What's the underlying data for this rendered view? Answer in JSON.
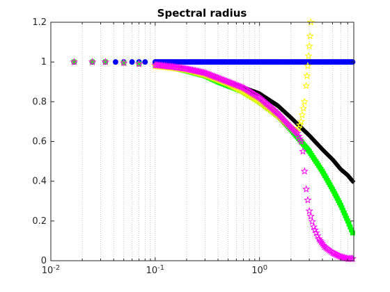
{
  "chart_data": {
    "type": "scatter",
    "title": "Spectral radius",
    "xlabel": "",
    "ylabel": "",
    "xscale": "log",
    "xlim": [
      0.01,
      8
    ],
    "ylim": [
      0,
      1.2
    ],
    "grid": "x-minor-dotted",
    "x_ticks": [
      {
        "value": 0.01,
        "base": "10",
        "exp": "-2"
      },
      {
        "value": 0.1,
        "base": "10",
        "exp": "-1"
      },
      {
        "value": 1,
        "base": "10",
        "exp": "0"
      }
    ],
    "y_ticks": [
      {
        "value": 0,
        "label": "0"
      },
      {
        "value": 0.2,
        "label": "0.2"
      },
      {
        "value": 0.4,
        "label": "0.4"
      },
      {
        "value": 0.6,
        "label": "0.6"
      },
      {
        "value": 0.8,
        "label": "0.8"
      },
      {
        "value": 1,
        "label": "1"
      },
      {
        "value": 1.2,
        "label": "1.2"
      }
    ],
    "series": [
      {
        "marker": "circle",
        "color": "#0000ff",
        "x": [
          0.0167,
          0.025,
          0.0333,
          0.0417,
          0.05,
          0.06,
          0.07,
          0.08,
          0.1,
          0.15,
          0.2,
          0.3,
          0.5,
          0.7,
          1,
          1.5,
          2,
          3,
          4,
          5,
          6,
          7,
          7.8
        ],
        "y": [
          1,
          1,
          1,
          1,
          1,
          1,
          1,
          1,
          1,
          1,
          1,
          1,
          1,
          1,
          1,
          1,
          1,
          1,
          1,
          1,
          1,
          1,
          1
        ]
      },
      {
        "marker": "diamond",
        "color": "#000000",
        "x": [
          0.0167,
          0.025,
          0.0333,
          0.05,
          0.07,
          0.1,
          0.15,
          0.2,
          0.3,
          0.4,
          0.5,
          0.7,
          1,
          1.5,
          2,
          2.5,
          3,
          4,
          5,
          6,
          7,
          7.8
        ],
        "y": [
          1,
          1,
          1,
          0.995,
          0.99,
          0.985,
          0.975,
          0.96,
          0.94,
          0.92,
          0.9,
          0.87,
          0.84,
          0.78,
          0.72,
          0.67,
          0.63,
          0.56,
          0.51,
          0.46,
          0.43,
          0.4
        ]
      },
      {
        "marker": "square",
        "color": "#00ff00",
        "x": [
          0.0167,
          0.025,
          0.0333,
          0.05,
          0.07,
          0.1,
          0.15,
          0.2,
          0.3,
          0.4,
          0.5,
          0.7,
          1,
          1.5,
          2,
          2.5,
          3,
          4,
          5,
          6,
          7,
          7.8
        ],
        "y": [
          1,
          1,
          1,
          0.995,
          0.99,
          0.98,
          0.97,
          0.955,
          0.93,
          0.9,
          0.88,
          0.85,
          0.8,
          0.73,
          0.66,
          0.6,
          0.55,
          0.45,
          0.36,
          0.28,
          0.2,
          0.14
        ]
      },
      {
        "marker": "star",
        "color": "#ffff00",
        "x": [
          0.0167,
          0.025,
          0.0333,
          0.05,
          0.07,
          0.1,
          0.15,
          0.2,
          0.3,
          0.4,
          0.5,
          0.7,
          1,
          1.5,
          2,
          2.3,
          2.5,
          2.7,
          2.8,
          2.85,
          2.9,
          2.95,
          3.0,
          3.05,
          3.1
        ],
        "y": [
          1,
          1,
          1,
          0.995,
          0.99,
          0.98,
          0.97,
          0.96,
          0.935,
          0.91,
          0.89,
          0.85,
          0.8,
          0.73,
          0.67,
          0.65,
          0.7,
          0.8,
          0.88,
          0.93,
          0.98,
          1.03,
          1.08,
          1.13,
          1.2
        ]
      },
      {
        "marker": "pentagram",
        "color": "#ff00ff",
        "x": [
          0.0167,
          0.025,
          0.0333,
          0.05,
          0.07,
          0.1,
          0.15,
          0.2,
          0.3,
          0.5,
          0.7,
          1,
          1.5,
          2,
          2.3,
          2.5,
          2.6,
          2.7,
          2.8,
          3,
          3.3,
          3.7,
          4.2,
          5,
          6,
          7,
          7.8
        ],
        "y": [
          1,
          1,
          1,
          0.995,
          0.99,
          0.985,
          0.975,
          0.965,
          0.945,
          0.9,
          0.87,
          0.82,
          0.74,
          0.67,
          0.64,
          0.6,
          0.55,
          0.45,
          0.36,
          0.25,
          0.17,
          0.11,
          0.07,
          0.04,
          0.02,
          0.01,
          0.01
        ]
      }
    ]
  }
}
